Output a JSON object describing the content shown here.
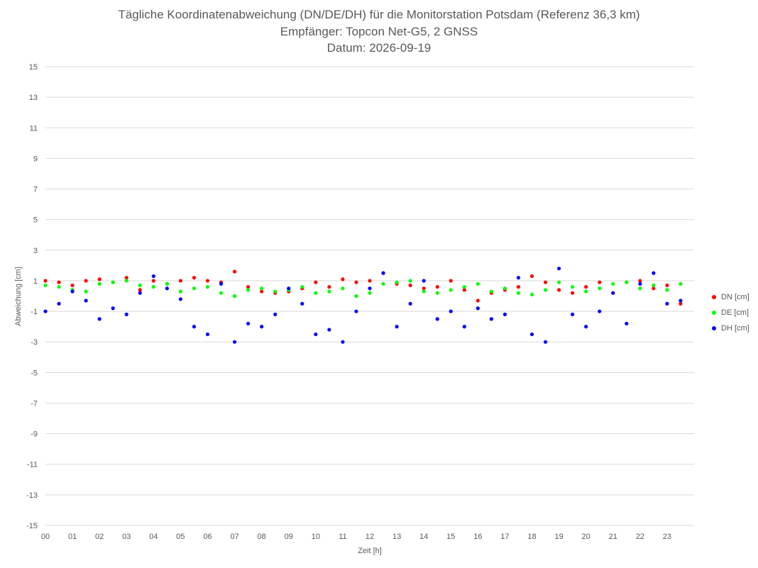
{
  "chart_data": {
    "type": "scatter",
    "title": "Tägliche Koordinatenabweichung (DN/DE/DH) für die Monitorstation Potsdam (Referenz 36,3 km)",
    "subtitle": "Empfänger: Topcon Net-G5, 2 GNSS",
    "date_line": "Datum: 2026-09-19",
    "xlabel": "Zeit [h]",
    "ylabel": "Abweichung [cm]",
    "xlim": [
      0,
      24
    ],
    "ylim": [
      -15,
      15
    ],
    "x_ticks": [
      "00",
      "01",
      "02",
      "03",
      "04",
      "05",
      "06",
      "07",
      "08",
      "09",
      "10",
      "11",
      "12",
      "13",
      "14",
      "15",
      "16",
      "17",
      "18",
      "19",
      "20",
      "21",
      "22",
      "23"
    ],
    "y_ticks": [
      "15",
      "13",
      "11",
      "9",
      "7",
      "5",
      "3",
      "1",
      "-1",
      "-3",
      "-5",
      "-7",
      "-9",
      "-11",
      "-13",
      "-15"
    ],
    "grid": true,
    "legend_position": "right",
    "series": [
      {
        "name": "DN [cm]",
        "color": "#FF0000",
        "x": [
          0,
          0.5,
          1,
          1.5,
          2,
          2.5,
          3,
          3.5,
          4,
          4.5,
          5,
          5.5,
          6,
          6.5,
          7,
          7.5,
          8,
          8.5,
          9,
          9.5,
          10,
          10.5,
          11,
          11.5,
          12,
          12.5,
          13,
          13.5,
          14,
          14.5,
          15,
          15.5,
          16,
          16.5,
          17,
          17.5,
          18,
          18.5,
          19,
          19.5,
          20,
          20.5,
          21,
          21.5,
          22,
          22.5,
          23,
          23.5
        ],
        "y": [
          1.0,
          0.9,
          0.7,
          1.0,
          1.1,
          0.9,
          1.2,
          0.4,
          1.0,
          0.8,
          1.0,
          1.2,
          1.0,
          0.9,
          1.6,
          0.6,
          0.3,
          0.2,
          0.3,
          0.5,
          0.9,
          0.6,
          1.1,
          0.9,
          1.0,
          1.5,
          0.8,
          0.7,
          0.5,
          0.6,
          1.0,
          0.4,
          -0.3,
          0.2,
          0.4,
          0.6,
          1.3,
          0.9,
          0.4,
          0.2,
          0.6,
          0.9,
          0.2,
          0.9,
          1.0,
          0.5,
          0.7,
          -0.5
        ]
      },
      {
        "name": "DE [cm]",
        "color": "#00FF00",
        "x": [
          0,
          0.5,
          1,
          1.5,
          2,
          2.5,
          3,
          3.5,
          4,
          4.5,
          5,
          5.5,
          6,
          6.5,
          7,
          7.5,
          8,
          8.5,
          9,
          9.5,
          10,
          10.5,
          11,
          11.5,
          12,
          12.5,
          13,
          13.5,
          14,
          14.5,
          15,
          15.5,
          16,
          16.5,
          17,
          17.5,
          18,
          18.5,
          19,
          19.5,
          20,
          20.5,
          21,
          21.5,
          22,
          22.5,
          23,
          23.5
        ],
        "y": [
          0.7,
          0.6,
          0.4,
          0.3,
          0.8,
          0.9,
          1.0,
          0.7,
          0.6,
          0.8,
          0.3,
          0.5,
          0.6,
          0.2,
          0.0,
          0.4,
          0.5,
          0.3,
          0.4,
          0.6,
          0.2,
          0.3,
          0.5,
          0.0,
          0.2,
          0.8,
          0.9,
          1.0,
          0.3,
          0.2,
          0.4,
          0.6,
          0.8,
          0.3,
          0.5,
          0.2,
          0.1,
          0.4,
          0.9,
          0.6,
          0.3,
          0.5,
          0.8,
          0.9,
          0.5,
          0.7,
          0.4,
          0.8
        ]
      },
      {
        "name": "DH [cm]",
        "color": "#0000FF",
        "x": [
          0,
          0.5,
          1,
          1.5,
          2,
          2.5,
          3,
          3.5,
          4,
          4.5,
          5,
          5.5,
          6,
          6.5,
          7,
          7.5,
          8,
          8.5,
          9,
          9.5,
          10,
          10.5,
          11,
          11.5,
          12,
          12.5,
          13,
          13.5,
          14,
          14.5,
          15,
          15.5,
          16,
          16.5,
          17,
          17.5,
          18,
          18.5,
          19,
          19.5,
          20,
          20.5,
          21,
          21.5,
          22,
          22.5,
          23,
          23.5
        ],
        "y": [
          -1.0,
          -0.5,
          0.3,
          -0.3,
          -1.5,
          -0.8,
          -1.2,
          0.2,
          1.3,
          0.5,
          -0.2,
          -2.0,
          -2.5,
          0.8,
          -3.0,
          -1.8,
          -2.0,
          -1.2,
          0.5,
          -0.5,
          -2.5,
          -2.2,
          -3.0,
          -1.0,
          0.5,
          1.5,
          -2.0,
          -0.5,
          1.0,
          -1.5,
          -1.0,
          -2.0,
          -0.8,
          -1.5,
          -1.2,
          1.2,
          -2.5,
          -3.0,
          1.8,
          -1.2,
          -2.0,
          -1.0,
          0.2,
          -1.8,
          0.8,
          1.5,
          -0.5,
          -0.3
        ]
      }
    ]
  }
}
